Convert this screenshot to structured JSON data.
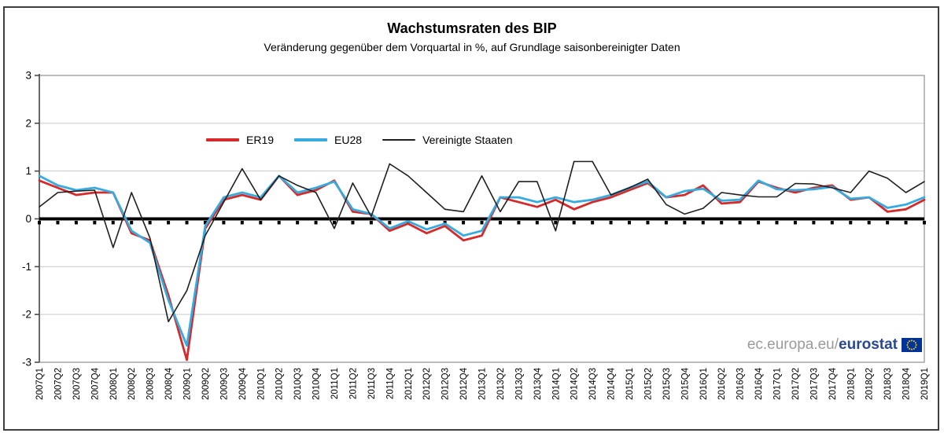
{
  "branding": {
    "url_prefix": "ec.europa.eu/",
    "brand": "eurostat",
    "flag_icon": "eu-flag-icon",
    "brand_color": "#29488f",
    "url_color": "#9b9b9b",
    "flag_blue": "#003399",
    "star_yellow": "#ffcc00"
  },
  "colors": {
    "er19": "#d62929",
    "eu28": "#36abe0",
    "us": "#1f1f1f",
    "zero_line": "#000000",
    "grid": "#c9c9c9",
    "plot_border": "#8f8f8f",
    "axis": "#4a4a4a",
    "text": "#000000"
  },
  "chart_data": {
    "type": "line",
    "title": "Wachstumsraten des BIP",
    "subtitle": "Veränderung gegenüber dem Vorquartal in %, auf Grundlage saisonbereinigter Daten",
    "ylabel": "",
    "xlabel": "",
    "ylim": [
      -3,
      3
    ],
    "y_ticks": [
      3,
      2,
      1,
      0,
      -1,
      -2,
      -3
    ],
    "grid": true,
    "legend_position": "top-inside",
    "x_labels": [
      "2007Q1",
      "2007Q2",
      "2007Q3",
      "2007Q4",
      "2008Q1",
      "2008Q2",
      "2008Q3",
      "2008Q4",
      "2009Q1",
      "2009Q2",
      "2009Q3",
      "2009Q4",
      "2010Q1",
      "2010Q2",
      "2010Q3",
      "2010Q4",
      "2011Q1",
      "2011Q2",
      "2011Q3",
      "2011Q4",
      "2012Q1",
      "2012Q2",
      "2012Q3",
      "2012Q4",
      "2013Q1",
      "2013Q2",
      "2013Q3",
      "2013Q4",
      "2014Q1",
      "2014Q2",
      "2014Q3",
      "2014Q4",
      "2015Q1",
      "2015Q2",
      "2015Q3",
      "2015Q4",
      "2016Q1",
      "2016Q2",
      "2016Q3",
      "2016Q4",
      "2017Q1",
      "2017Q2",
      "2017Q3",
      "2017Q4",
      "2018Q1",
      "2018Q2",
      "2018Q3",
      "2018Q4",
      "2019Q1"
    ],
    "series": [
      {
        "name": "ER19",
        "color": "#d62929",
        "line_width": 2.8,
        "values": [
          0.8,
          0.65,
          0.5,
          0.55,
          0.55,
          -0.3,
          -0.45,
          -1.6,
          -2.95,
          -0.2,
          0.4,
          0.5,
          0.4,
          0.9,
          0.5,
          0.6,
          0.8,
          0.15,
          0.1,
          -0.25,
          -0.1,
          -0.3,
          -0.15,
          -0.45,
          -0.35,
          0.45,
          0.35,
          0.25,
          0.4,
          0.2,
          0.35,
          0.45,
          0.6,
          0.75,
          0.45,
          0.5,
          0.7,
          0.32,
          0.35,
          0.78,
          0.65,
          0.55,
          0.65,
          0.7,
          0.4,
          0.45,
          0.15,
          0.2,
          0.4
        ]
      },
      {
        "name": "EU28",
        "color": "#36abe0",
        "line_width": 2.8,
        "values": [
          0.9,
          0.7,
          0.6,
          0.65,
          0.55,
          -0.25,
          -0.5,
          -1.7,
          -2.65,
          -0.15,
          0.45,
          0.55,
          0.45,
          0.9,
          0.55,
          0.65,
          0.78,
          0.2,
          0.1,
          -0.2,
          -0.05,
          -0.22,
          -0.1,
          -0.35,
          -0.25,
          0.45,
          0.45,
          0.35,
          0.45,
          0.35,
          0.4,
          0.5,
          0.65,
          0.78,
          0.45,
          0.58,
          0.63,
          0.38,
          0.4,
          0.8,
          0.62,
          0.6,
          0.62,
          0.67,
          0.42,
          0.45,
          0.23,
          0.3,
          0.45
        ]
      },
      {
        "name": "Vereinigte Staaten",
        "color": "#1f1f1f",
        "line_width": 1.6,
        "values": [
          0.25,
          0.55,
          0.58,
          0.6,
          -0.6,
          0.55,
          -0.4,
          -2.15,
          -1.5,
          -0.35,
          0.35,
          1.05,
          0.4,
          0.9,
          0.7,
          0.55,
          -0.2,
          0.75,
          0.05,
          1.15,
          0.9,
          0.55,
          0.2,
          0.15,
          0.9,
          0.15,
          0.78,
          0.78,
          -0.25,
          1.2,
          1.2,
          0.5,
          0.65,
          0.83,
          0.3,
          0.1,
          0.22,
          0.55,
          0.5,
          0.46,
          0.46,
          0.74,
          0.73,
          0.65,
          0.55,
          1.0,
          0.85,
          0.55,
          0.78
        ]
      }
    ]
  }
}
